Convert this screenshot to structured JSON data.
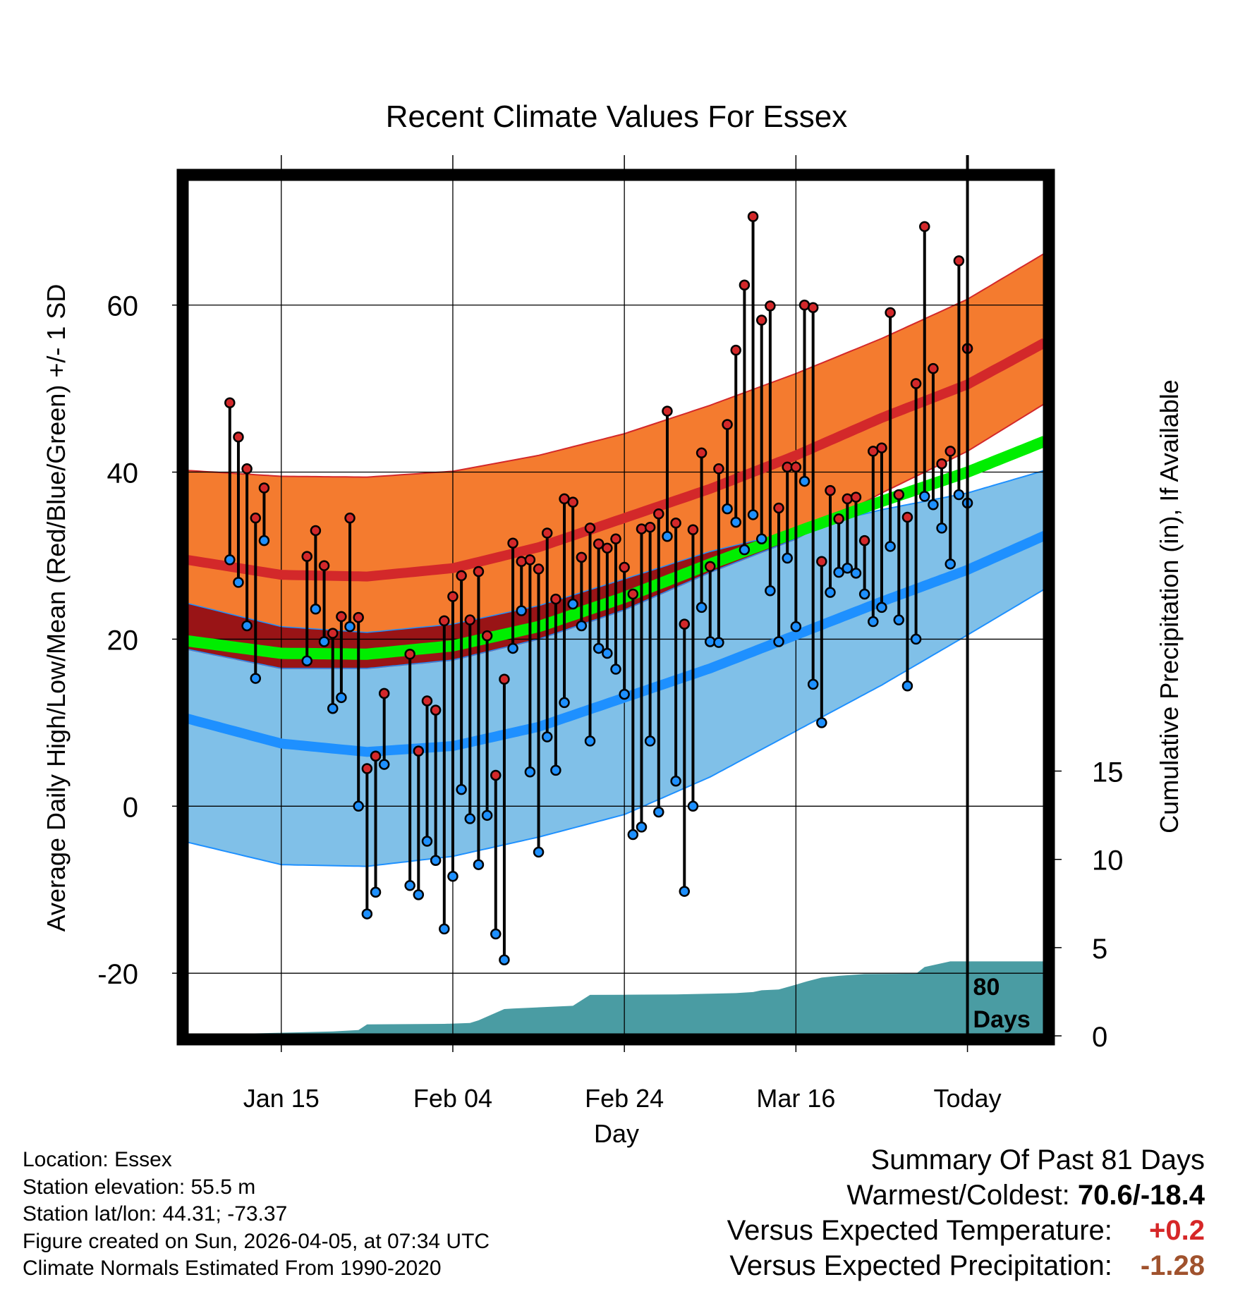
{
  "title": "Recent Climate Values For Essex",
  "chart_data": {
    "type": "line",
    "title": "Recent Climate Values For Essex",
    "xlabel": "Day",
    "ylabel": "Average Daily High/Low/Mean (Red/Blue/Green) +/- 1 SD",
    "y2label": "Cumulative Precipitation (in), If Available",
    "ylim": [
      -27.5,
      75
    ],
    "y2lim": [
      0,
      48.5
    ],
    "xlim": [
      -91,
      9
    ],
    "x_unit": "days relative to today",
    "x_ticks": [
      {
        "x": -80,
        "label": "Jan 15"
      },
      {
        "x": -60,
        "label": "Feb 04"
      },
      {
        "x": -40,
        "label": "Feb 24"
      },
      {
        "x": -20,
        "label": "Mar 16"
      },
      {
        "x": 0,
        "label": "Today"
      }
    ],
    "y_ticks": [
      -20,
      0,
      20,
      40,
      60
    ],
    "y2_ticks": [
      0,
      5,
      10,
      15
    ],
    "today_marker": "80 Days",
    "normals": {
      "x": [
        -91,
        -80,
        -70,
        -60,
        -50,
        -40,
        -30,
        -20,
        -10,
        0,
        9
      ],
      "high_mean": [
        29.5,
        27.7,
        27.5,
        28.5,
        31,
        34.5,
        38,
        42,
        46.5,
        50.5,
        55.5
      ],
      "high_upper": [
        40.2,
        39.5,
        39.4,
        40.1,
        42,
        44.6,
        48,
        51.8,
        56,
        60.7,
        66.2
      ],
      "high_lower": [
        18.8,
        16.5,
        16.5,
        17.5,
        20,
        23.5,
        28,
        32,
        37.5,
        42.5,
        48.2
      ],
      "mean": [
        19.8,
        18.3,
        18.2,
        19.2,
        21.5,
        25,
        29,
        32.8,
        36.5,
        40,
        43.7
      ],
      "low_mean": [
        10.5,
        7.5,
        6.5,
        7.2,
        9.5,
        13,
        16.5,
        20.5,
        24.5,
        28.3,
        32.4
      ],
      "low_upper": [
        24.3,
        21.5,
        20.8,
        21.8,
        24,
        27.2,
        30.5,
        33,
        35.5,
        37.5,
        40.2
      ],
      "low_lower": [
        -4.3,
        -7,
        -7.2,
        -6,
        -3.7,
        -1,
        3.5,
        9,
        14.5,
        20.5,
        26
      ]
    },
    "series": [
      {
        "name": "Daily High",
        "color": "#d62728",
        "values": [
          48.3,
          44.2,
          40.4,
          34.5,
          38.1,
          null,
          null,
          null,
          null,
          29.9,
          33.0,
          28.8,
          20.7,
          22.7,
          34.5,
          22.6,
          4.5,
          6.0,
          13.5,
          null,
          null,
          18.2,
          6.6,
          12.6,
          11.5,
          22.2,
          25.1,
          27.6,
          22.3,
          28.1,
          20.4,
          3.7,
          15.2,
          31.5,
          29.3,
          29.5,
          28.4,
          32.7,
          24.8,
          36.8,
          36.4,
          29.8,
          33.3,
          31.4,
          30.9,
          32.0,
          28.6,
          25.4,
          33.2,
          33.4,
          35.0,
          47.3,
          33.9,
          21.8,
          33.1,
          42.3,
          28.7,
          40.4,
          45.7,
          54.6,
          62.4,
          70.6,
          58.2,
          59.9,
          35.7,
          40.6,
          40.6,
          60.0,
          59.7,
          29.3,
          37.8,
          34.4,
          36.8,
          37.0,
          31.8,
          42.5,
          42.9,
          59.1,
          37.3,
          34.6,
          50.6,
          69.4,
          52.4,
          41.0,
          42.5,
          65.3,
          54.8
        ]
      },
      {
        "name": "Daily Low",
        "color": "#1f77d4",
        "values": [
          29.5,
          26.8,
          21.6,
          15.3,
          31.8,
          null,
          null,
          null,
          null,
          17.4,
          23.6,
          19.7,
          11.7,
          13.0,
          21.5,
          0.0,
          -12.9,
          -10.3,
          5.0,
          null,
          null,
          -9.5,
          -10.6,
          -4.2,
          -6.5,
          -14.7,
          -8.4,
          2.0,
          -1.5,
          -7.0,
          -1.1,
          -15.3,
          -18.4,
          18.9,
          23.4,
          4.1,
          -5.5,
          8.3,
          4.3,
          12.4,
          24.2,
          21.6,
          7.8,
          18.9,
          18.3,
          16.4,
          13.4,
          -3.4,
          -2.5,
          7.8,
          -0.7,
          32.3,
          3.0,
          -10.2,
          0.0,
          23.8,
          19.7,
          19.6,
          35.6,
          34.0,
          30.7,
          34.9,
          32.0,
          25.8,
          19.7,
          29.7,
          21.5,
          38.9,
          14.6,
          10.0,
          25.6,
          28.0,
          28.5,
          27.9,
          25.4,
          22.1,
          23.8,
          31.1,
          22.3,
          14.4,
          20.0,
          37.1,
          36.1,
          33.3,
          29.0,
          37.3,
          36.3
        ]
      }
    ],
    "precip_cumulative": {
      "x": [
        -91,
        -85,
        -84,
        -78,
        -74,
        -71,
        -70,
        -61,
        -58,
        -57,
        -54,
        -53,
        -46,
        -44,
        -40,
        -34,
        -27,
        -25,
        -24,
        -22,
        -20,
        -19,
        -17,
        -15,
        -12,
        -6,
        -5,
        -2,
        9
      ],
      "values": [
        0,
        0,
        0.13,
        0.2,
        0.25,
        0.33,
        0.65,
        0.68,
        0.73,
        0.88,
        1.52,
        1.55,
        1.7,
        2.32,
        2.33,
        2.35,
        2.42,
        2.48,
        2.58,
        2.63,
        2.9,
        3.05,
        3.3,
        3.4,
        3.5,
        3.52,
        3.9,
        4.22,
        4.22
      ]
    }
  },
  "info": {
    "location": "Location: Essex",
    "elevation": "Station elevation: 55.5 m",
    "latlon": "Station lat/lon: 44.31; -73.37",
    "created": "Figure created on Sun, 2026-04-05, at 07:34 UTC",
    "normals": "Climate Normals Estimated From 1990-2020"
  },
  "summary": {
    "heading": "Summary Of Past 81 Days",
    "warmest_coldest_label": "Warmest/Coldest:",
    "warmest_coldest_value": "70.6/-18.4",
    "temp_label": "Versus Expected Temperature:",
    "temp_value": "+0.2",
    "temp_color": "#d62728",
    "precip_label": "Versus Expected Precipitation:",
    "precip_value": "-1.28",
    "precip_color": "#a0522d"
  },
  "colors": {
    "high_band": "#f47b2f",
    "high_line": "#d3282a",
    "overlap_band": "#991416",
    "low_band": "#80c0e8",
    "low_line": "#1e90ff",
    "mean_line": "#00ee00",
    "precip_fill": "#4a9ca3"
  }
}
